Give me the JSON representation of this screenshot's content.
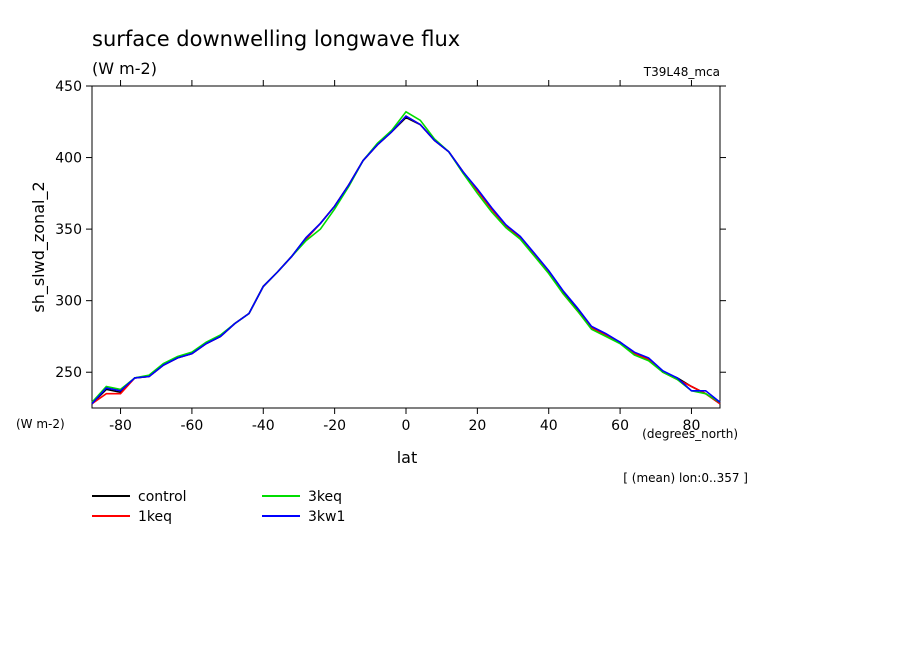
{
  "chart_data": {
    "type": "line",
    "title": "surface downwelling longwave flux",
    "subtitle": "(W m-2)",
    "dataset": "T39L48_mca",
    "y_label": "sh_slwd_zonal_2",
    "y_units": "(W m-2)",
    "x_label": "lat",
    "x_units": "(degrees_north)",
    "note": "[ (mean) lon:0..357 ]",
    "x": [
      -88,
      -84,
      -80,
      -76,
      -72,
      -68,
      -64,
      -60,
      -56,
      -52,
      -48,
      -44,
      -40,
      -36,
      -32,
      -28,
      -24,
      -20,
      -16,
      -12,
      -8,
      -4,
      0,
      4,
      8,
      12,
      16,
      20,
      24,
      28,
      32,
      36,
      40,
      44,
      48,
      52,
      56,
      60,
      64,
      68,
      72,
      76,
      80,
      84,
      88
    ],
    "series": [
      {
        "name": "control",
        "color": "#000000",
        "values": [
          228,
          238,
          236,
          246,
          247,
          255,
          260,
          263,
          270,
          275,
          284,
          291,
          310,
          320,
          331,
          344,
          354,
          366,
          381,
          398,
          409,
          418,
          428,
          423,
          412,
          404,
          390,
          377,
          364,
          352,
          344,
          332,
          320,
          306,
          294,
          281,
          276,
          271,
          263,
          259,
          250,
          246,
          240,
          235,
          228
        ]
      },
      {
        "name": "1keq",
        "color": "#ff0000",
        "values": [
          228,
          235,
          235,
          246,
          247,
          255,
          260,
          263,
          270,
          275,
          284,
          291,
          310,
          320,
          331,
          343,
          354,
          366,
          381,
          398,
          409,
          418,
          429,
          423,
          412,
          404,
          390,
          377,
          364,
          352,
          344,
          332,
          320,
          305,
          293,
          281,
          276,
          271,
          263,
          259,
          250,
          245,
          240,
          235,
          228
        ]
      },
      {
        "name": "3keq",
        "color": "#00dd00",
        "values": [
          229,
          240,
          238,
          246,
          248,
          256,
          261,
          264,
          271,
          276,
          284,
          291,
          310,
          320,
          331,
          342,
          350,
          364,
          380,
          398,
          410,
          419,
          432,
          426,
          413,
          404,
          389,
          375,
          362,
          351,
          343,
          331,
          319,
          305,
          293,
          280,
          275,
          270,
          262,
          258,
          250,
          245,
          237,
          235,
          229
        ]
      },
      {
        "name": "3kw1",
        "color": "#0000ff",
        "values": [
          228,
          239,
          237,
          246,
          247,
          255,
          260,
          263,
          270,
          275,
          284,
          291,
          310,
          320,
          331,
          344,
          354,
          366,
          381,
          398,
          409,
          418,
          429,
          423,
          412,
          404,
          390,
          378,
          365,
          353,
          345,
          333,
          321,
          307,
          295,
          282,
          277,
          271,
          264,
          260,
          251,
          246,
          237,
          237,
          229
        ]
      }
    ],
    "xlim": [
      -88,
      88
    ],
    "ylim": [
      225,
      450
    ],
    "xticks": [
      -80,
      -60,
      -40,
      -20,
      0,
      20,
      40,
      60,
      80
    ],
    "yticks": [
      250,
      300,
      350,
      400,
      450
    ]
  }
}
